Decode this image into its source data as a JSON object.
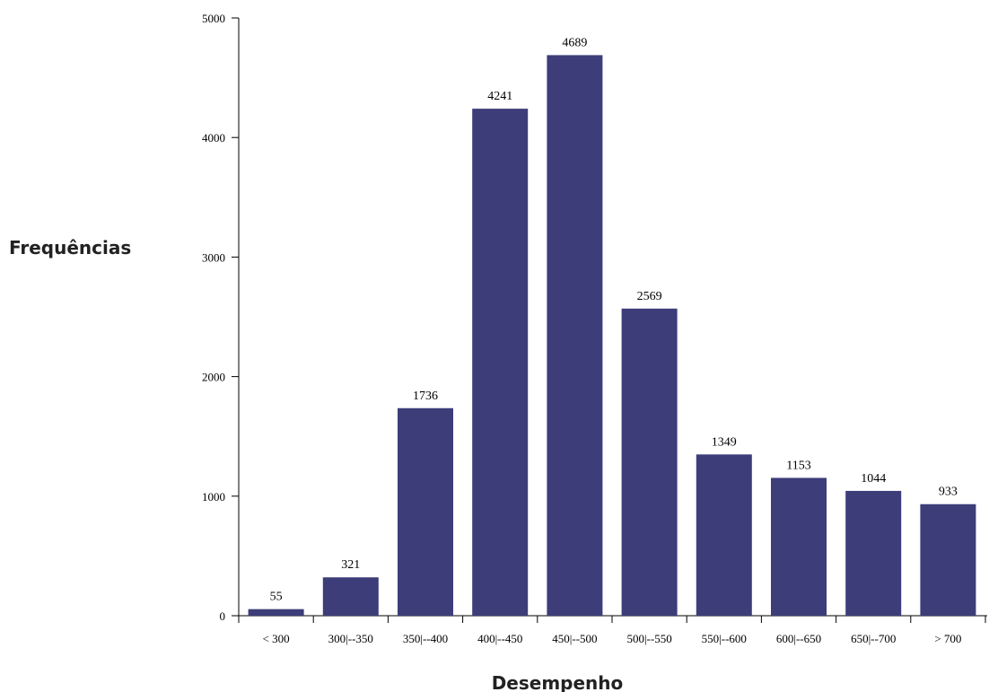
{
  "chart_data": {
    "type": "bar",
    "title": "",
    "xlabel": "Desempenho",
    "ylabel": "Frequências",
    "categories": [
      "< 300",
      "300|--350",
      "350|--400",
      "400|--450",
      "450|--500",
      "500|--550",
      "550|--600",
      "600|--650",
      "650|--700",
      "> 700"
    ],
    "values": [
      55,
      321,
      1736,
      4241,
      4689,
      2569,
      1349,
      1153,
      1044,
      933
    ],
    "ylim": [
      0,
      5000
    ],
    "yticks": [
      0,
      1000,
      2000,
      3000,
      4000,
      5000
    ],
    "bar_color": "#3d3d7a",
    "grid": false,
    "legend": "none"
  }
}
